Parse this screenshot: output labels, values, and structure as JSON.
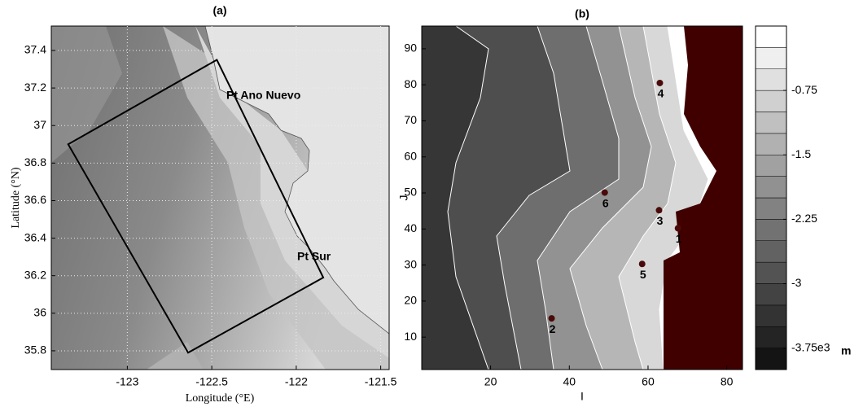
{
  "chart_data": [
    {
      "type": "map",
      "title": "(a)",
      "x_label": "Longitude (°E)",
      "y_label": "Latitude (°N)",
      "xlim": [
        -123.45,
        -121.45
      ],
      "ylim": [
        35.7,
        37.53
      ],
      "xticks": [
        -123,
        -122.5,
        -122,
        -121.5
      ],
      "yticks": [
        35.8,
        36,
        36.2,
        36.4,
        36.6,
        36.8,
        37,
        37.2,
        37.4
      ],
      "grid": true,
      "annotations": [
        "Pt Ano Nuevo",
        "Pt Sur"
      ],
      "boundary": {
        "x": [
          -122.47,
          -123.35,
          -122.64,
          -121.84
        ],
        "y": [
          37.35,
          36.9,
          35.79,
          36.19
        ]
      }
    },
    {
      "type": "contour",
      "title": "(b)",
      "x_label": "I",
      "y_label": "J",
      "xlim": [
        2.5,
        84
      ],
      "ylim": [
        1,
        96.3
      ],
      "xticks": [
        20,
        40,
        60,
        80
      ],
      "yticks": [
        10,
        20,
        30,
        40,
        50,
        60,
        70,
        80,
        90
      ],
      "points": {
        "x": [
          67.6,
          35.5,
          62.8,
          63,
          58.5,
          49
        ],
        "y": [
          40.2,
          15.2,
          45.2,
          80.5,
          30.3,
          50.1
        ],
        "labels": [
          "1",
          "2",
          "3",
          "4",
          "5",
          "6"
        ],
        "color": "#4a0a0a"
      },
      "colorbar": {
        "lim": [
          -4,
          0
        ],
        "ticks": [
          -0.75,
          -1.5,
          -2.25,
          -3,
          {
            "value": -3.75,
            "label": "-3.75e3"
          }
        ],
        "unit": "m"
      }
    }
  ]
}
